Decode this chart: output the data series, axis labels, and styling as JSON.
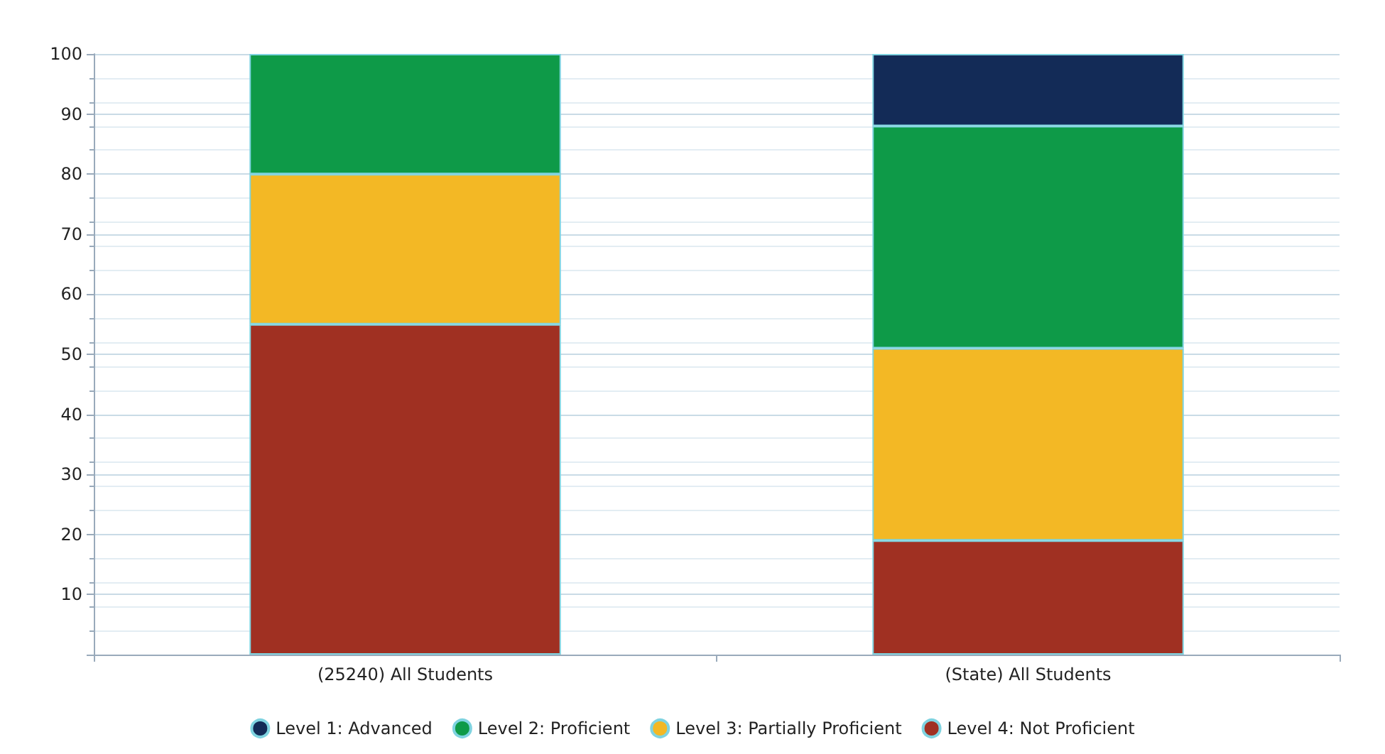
{
  "chart_data": {
    "type": "bar",
    "stacked": true,
    "categories": [
      "(25240) All Students",
      "(State) All Students"
    ],
    "series": [
      {
        "name": "Level 4: Not Proficient",
        "color": "#a03022",
        "values": [
          55,
          19
        ]
      },
      {
        "name": "Level 3: Partially Proficient",
        "color": "#f3b825",
        "values": [
          25,
          32
        ]
      },
      {
        "name": "Level 2: Proficient",
        "color": "#0e9a48",
        "values": [
          20,
          37
        ]
      },
      {
        "name": "Level 1: Advanced",
        "color": "#132b57",
        "values": [
          null,
          12
        ]
      }
    ],
    "ylim": [
      0,
      100
    ],
    "yticks": [
      {
        "value": 0,
        "label": null
      },
      10,
      20,
      30,
      40,
      50,
      60,
      70,
      80,
      90,
      100
    ],
    "grid": "y",
    "legend": "bottom"
  }
}
